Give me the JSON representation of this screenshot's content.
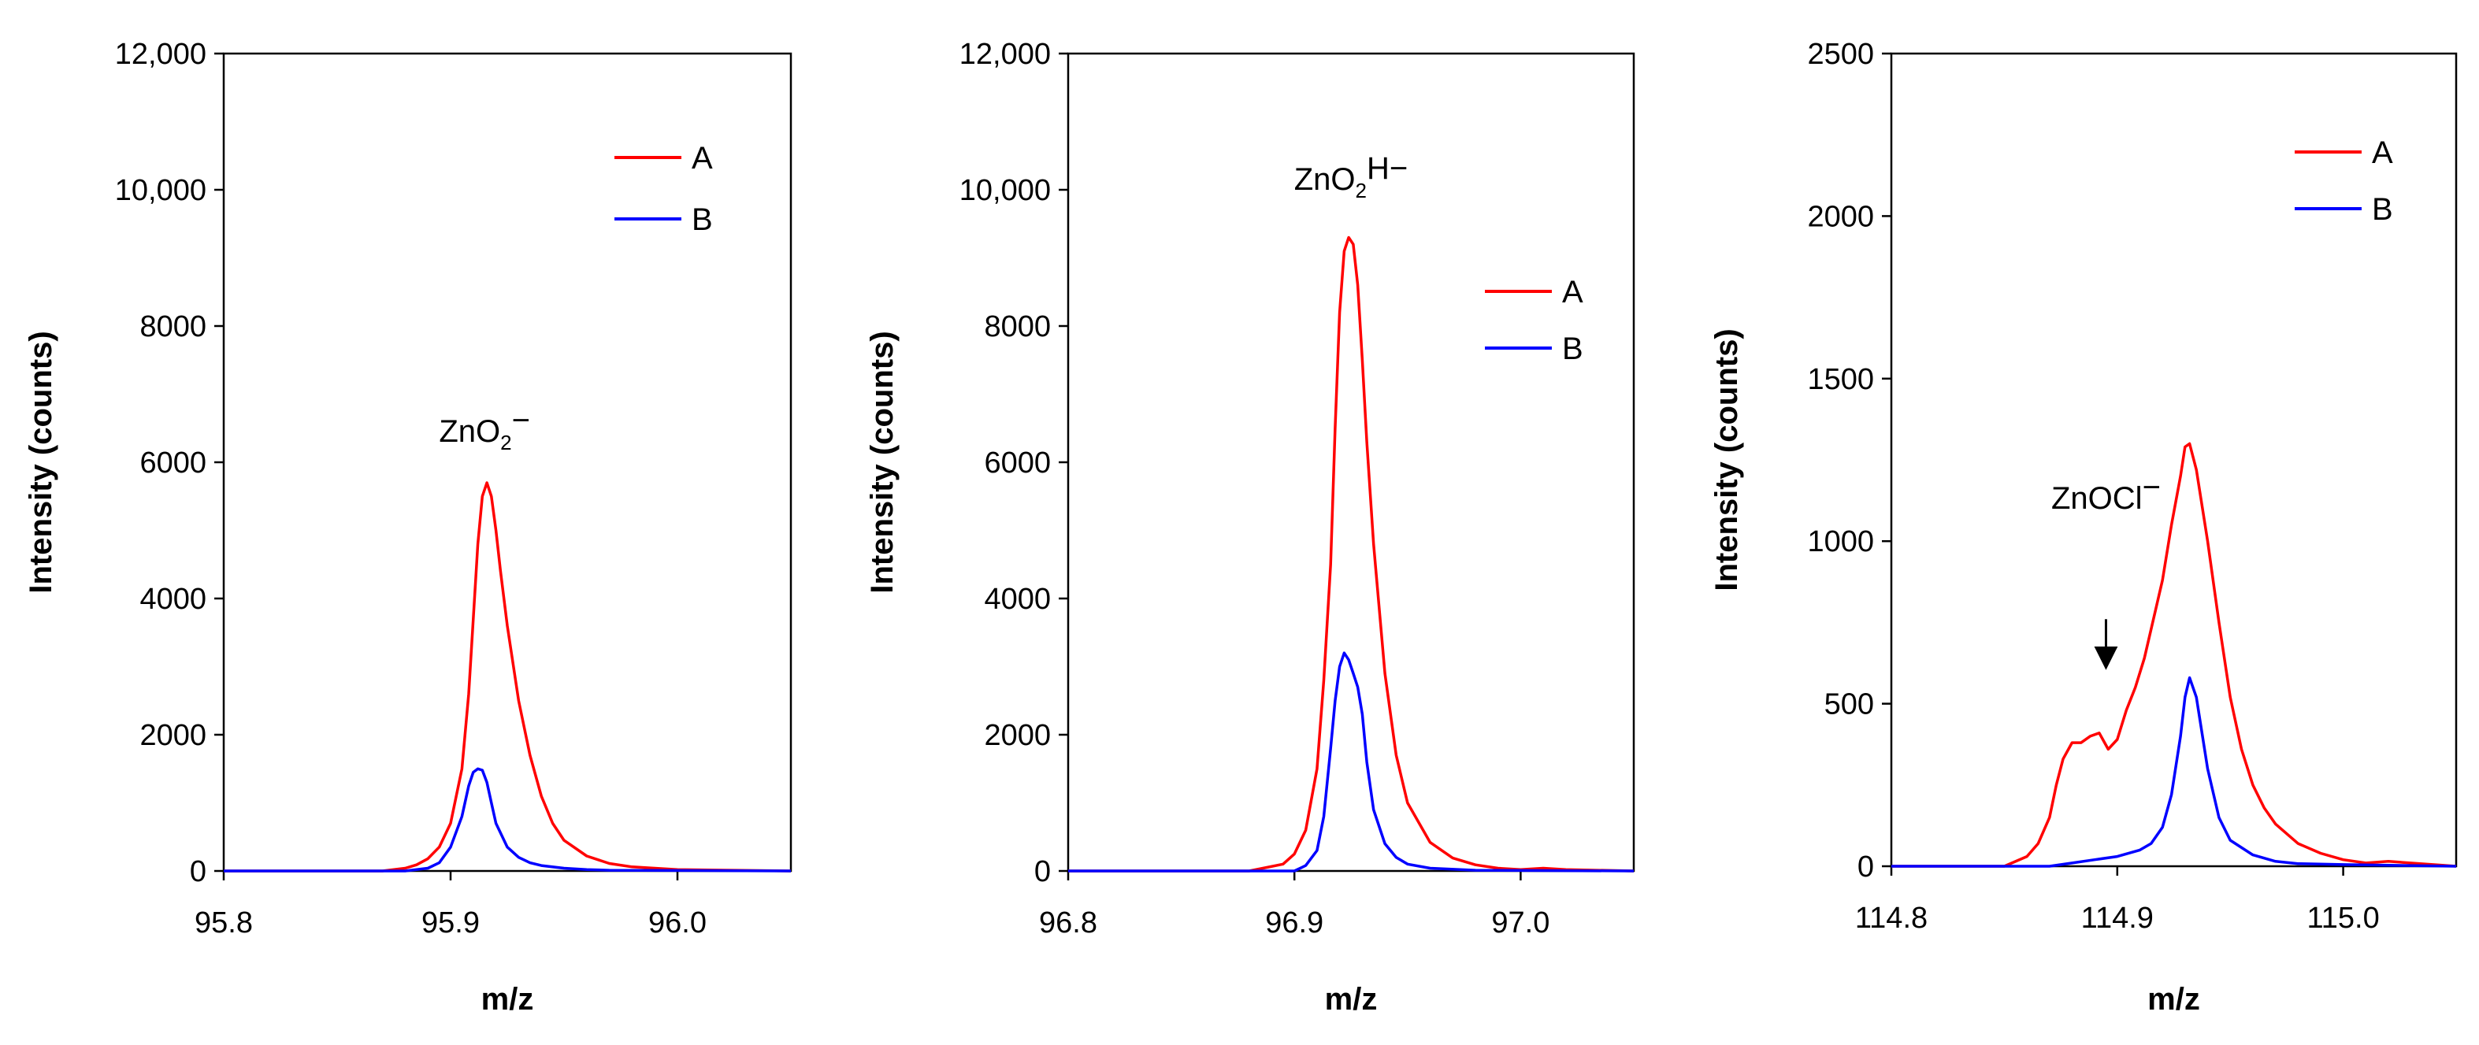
{
  "chart_data": [
    {
      "type": "line",
      "title": "",
      "xlabel": "m/z",
      "ylabel": "Intensity (counts)",
      "xlim": [
        95.8,
        96.05
      ],
      "ylim": [
        0,
        12000
      ],
      "x_ticks": [
        95.8,
        95.9,
        96.0
      ],
      "x_tick_labels": [
        "95.8",
        "95.9",
        "96.0"
      ],
      "y_ticks": [
        0,
        2000,
        4000,
        6000,
        8000,
        10000,
        12000
      ],
      "y_tick_labels": [
        "0",
        "2000",
        "4000",
        "6000",
        "8000",
        "10,000",
        "12,000"
      ],
      "legend": [
        "A",
        "B"
      ],
      "legend_position": "top-right",
      "annotation": {
        "text": "ZnO",
        "sub": "2",
        "sup": "−",
        "x": 95.915,
        "y": 6300
      },
      "grid": false,
      "series": [
        {
          "name": "A",
          "color": "#ff0000",
          "x": [
            95.8,
            95.87,
            95.88,
            95.885,
            95.89,
            95.895,
            95.9,
            95.905,
            95.908,
            95.91,
            95.912,
            95.914,
            95.916,
            95.918,
            95.92,
            95.922,
            95.925,
            95.93,
            95.935,
            95.94,
            95.945,
            95.95,
            95.96,
            95.97,
            95.98,
            96.0,
            96.05
          ],
          "y": [
            0,
            0,
            40,
            90,
            180,
            350,
            700,
            1500,
            2600,
            3700,
            4800,
            5500,
            5700,
            5500,
            5000,
            4400,
            3600,
            2500,
            1700,
            1100,
            700,
            450,
            220,
            110,
            60,
            20,
            0
          ]
        },
        {
          "name": "B",
          "color": "#0000ff",
          "x": [
            95.8,
            95.88,
            95.89,
            95.895,
            95.9,
            95.905,
            95.908,
            95.91,
            95.912,
            95.914,
            95.916,
            95.918,
            95.92,
            95.925,
            95.93,
            95.935,
            95.94,
            95.95,
            95.96,
            95.97,
            96.05
          ],
          "y": [
            0,
            0,
            40,
            120,
            350,
            800,
            1250,
            1450,
            1500,
            1480,
            1300,
            1000,
            700,
            350,
            200,
            120,
            80,
            40,
            20,
            10,
            0
          ]
        }
      ]
    },
    {
      "type": "line",
      "title": "",
      "xlabel": "m/z",
      "ylabel": "Intensity (counts)",
      "xlim": [
        96.8,
        97.05
      ],
      "ylim": [
        0,
        12000
      ],
      "x_ticks": [
        96.8,
        96.9,
        97.0
      ],
      "x_tick_labels": [
        "96.8",
        "96.9",
        "97.0"
      ],
      "y_ticks": [
        0,
        2000,
        4000,
        6000,
        8000,
        10000,
        12000
      ],
      "y_tick_labels": [
        "0",
        "2000",
        "4000",
        "6000",
        "8000",
        "10,000",
        "12,000"
      ],
      "legend": [
        "A",
        "B"
      ],
      "legend_position": "center-right",
      "annotation": {
        "text": "ZnO",
        "sub": "2",
        "sup": "H−",
        "x": 96.925,
        "y": 10000
      },
      "grid": false,
      "series": [
        {
          "name": "A",
          "color": "#ff0000",
          "x": [
            96.8,
            96.88,
            96.895,
            96.9,
            96.905,
            96.91,
            96.913,
            96.916,
            96.918,
            96.92,
            96.922,
            96.924,
            96.926,
            96.928,
            96.93,
            96.932,
            96.935,
            96.94,
            96.945,
            96.95,
            96.96,
            96.97,
            96.98,
            96.99,
            97.0,
            97.01,
            97.02,
            97.05
          ],
          "y": [
            0,
            0,
            100,
            250,
            600,
            1500,
            2800,
            4500,
            6500,
            8200,
            9100,
            9300,
            9200,
            8600,
            7500,
            6300,
            4800,
            2900,
            1700,
            1000,
            420,
            190,
            90,
            40,
            20,
            40,
            20,
            0
          ]
        },
        {
          "name": "B",
          "color": "#0000ff",
          "x": [
            96.8,
            96.9,
            96.905,
            96.91,
            96.913,
            96.916,
            96.918,
            96.92,
            96.922,
            96.924,
            96.926,
            96.928,
            96.93,
            96.932,
            96.935,
            96.94,
            96.945,
            96.95,
            96.96,
            96.98,
            97.05
          ],
          "y": [
            0,
            0,
            80,
            300,
            800,
            1800,
            2500,
            3000,
            3200,
            3100,
            2900,
            2700,
            2300,
            1600,
            900,
            400,
            200,
            100,
            40,
            10,
            0
          ]
        }
      ]
    },
    {
      "type": "line",
      "title": "",
      "xlabel": "m/z",
      "ylabel": "Intensity (counts)",
      "xlim": [
        114.8,
        115.05
      ],
      "ylim": [
        0,
        2500
      ],
      "x_ticks": [
        114.8,
        114.9,
        115.0
      ],
      "x_tick_labels": [
        "114.8",
        "114.9",
        "115.0"
      ],
      "y_ticks": [
        0,
        500,
        1000,
        1500,
        2000,
        2500
      ],
      "y_tick_labels": [
        "0",
        "500",
        "1000",
        "1500",
        "2000",
        "2500"
      ],
      "legend": [
        "A",
        "B"
      ],
      "legend_position": "top-right",
      "annotation": {
        "text": "ZnOCl",
        "sub": "",
        "sup": "−",
        "x": 114.895,
        "y": 1100
      },
      "arrow": {
        "x": 114.895,
        "y_from": 760,
        "y_to": 640
      },
      "grid": false,
      "series": [
        {
          "name": "A",
          "color": "#ff0000",
          "x": [
            114.8,
            114.85,
            114.86,
            114.865,
            114.87,
            114.873,
            114.876,
            114.88,
            114.884,
            114.888,
            114.892,
            114.896,
            114.9,
            114.904,
            114.908,
            114.912,
            114.916,
            114.92,
            114.924,
            114.928,
            114.93,
            114.932,
            114.935,
            114.94,
            114.945,
            114.95,
            114.955,
            114.96,
            114.965,
            114.97,
            114.98,
            114.99,
            115.0,
            115.01,
            115.02,
            115.05
          ],
          "y": [
            0,
            0,
            30,
            70,
            150,
            250,
            330,
            380,
            380,
            400,
            410,
            360,
            390,
            480,
            550,
            640,
            760,
            880,
            1050,
            1200,
            1290,
            1300,
            1220,
            1000,
            750,
            520,
            360,
            250,
            180,
            130,
            70,
            40,
            20,
            10,
            15,
            0
          ]
        },
        {
          "name": "B",
          "color": "#0000ff",
          "x": [
            114.8,
            114.87,
            114.88,
            114.89,
            114.9,
            114.91,
            114.915,
            114.92,
            114.924,
            114.928,
            114.93,
            114.932,
            114.935,
            114.94,
            114.945,
            114.95,
            114.96,
            114.97,
            114.98,
            115.0,
            115.05
          ],
          "y": [
            0,
            0,
            10,
            20,
            30,
            50,
            70,
            120,
            220,
            400,
            520,
            580,
            520,
            300,
            150,
            80,
            35,
            15,
            8,
            5,
            0
          ]
        }
      ]
    }
  ]
}
